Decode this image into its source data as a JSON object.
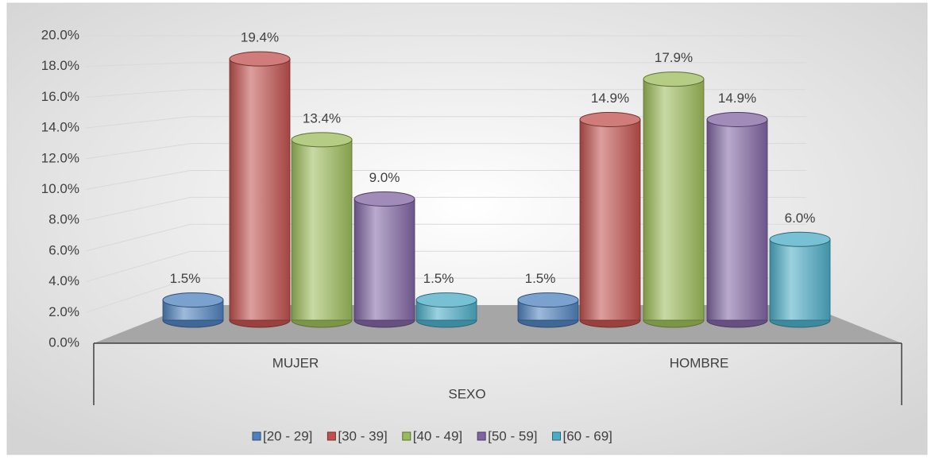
{
  "chart_data": {
    "type": "bar3d",
    "x_label": "SEXO",
    "categories": [
      "MUJER",
      "HOMBRE"
    ],
    "series": [
      {
        "name": "[20 - 29]",
        "color": "#4f81bd",
        "values": [
          1.5,
          1.5
        ],
        "value_labels": [
          "1.5%",
          "1.5%"
        ]
      },
      {
        "name": "[30 - 39]",
        "color": "#c0504d",
        "values": [
          19.4,
          14.9
        ],
        "value_labels": [
          "19.4%",
          "14.9%"
        ]
      },
      {
        "name": "[40 - 49]",
        "color": "#9bbb59",
        "values": [
          13.4,
          17.9
        ],
        "value_labels": [
          "13.4%",
          "17.9%"
        ]
      },
      {
        "name": "[50 - 59]",
        "color": "#8064a2",
        "values": [
          9.0,
          14.9
        ],
        "value_labels": [
          "9.0%",
          "14.9%"
        ]
      },
      {
        "name": "[60 - 69]",
        "color": "#4bacc6",
        "values": [
          1.5,
          6.0
        ],
        "value_labels": [
          "1.5%",
          "6.0%"
        ]
      }
    ],
    "ylim": [
      0,
      20
    ],
    "yticks": [
      {
        "value": 0,
        "label": "0.0%"
      },
      {
        "value": 2,
        "label": "2.0%"
      },
      {
        "value": 4,
        "label": "4.0%"
      },
      {
        "value": 6,
        "label": "6.0%"
      },
      {
        "value": 8,
        "label": "8.0%"
      },
      {
        "value": 10,
        "label": "10.0%"
      },
      {
        "value": 12,
        "label": "12.0%"
      },
      {
        "value": 14,
        "label": "14.0%"
      },
      {
        "value": 16,
        "label": "16.0%"
      },
      {
        "value": 18,
        "label": "18.0%"
      },
      {
        "value": 20,
        "label": "20.0%"
      }
    ],
    "grid": true,
    "legend": "bottom"
  }
}
